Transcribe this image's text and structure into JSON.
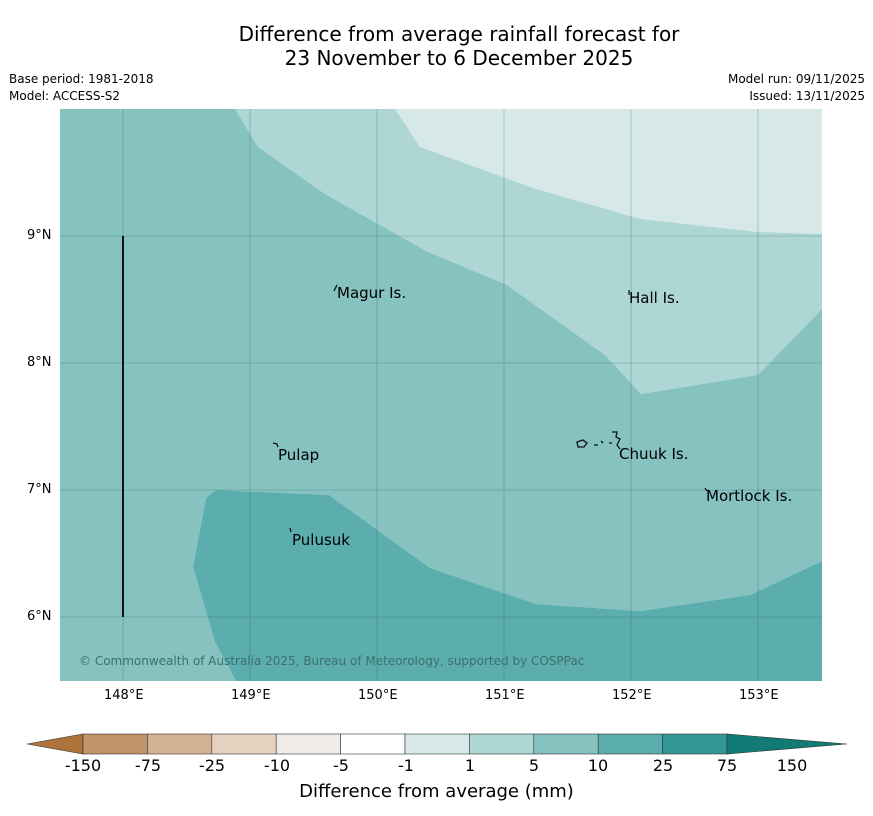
{
  "title": {
    "line1": "Difference from average rainfall forecast for",
    "line2": "23 November to 6 December 2025"
  },
  "meta": {
    "base_period": "Base period: 1981-2018",
    "model": "Model: ACCESS-S2",
    "model_run": "Model run: 09/11/2025",
    "issued": "Issued: 13/11/2025"
  },
  "map": {
    "x_ticks": [
      "148°E",
      "149°E",
      "150°E",
      "151°E",
      "152°E",
      "153°E"
    ],
    "y_ticks": [
      "9°N",
      "8°N",
      "7°N",
      "6°N"
    ],
    "places": [
      {
        "name": "Magur Is.",
        "lon": 149.7,
        "lat": 8.57
      },
      {
        "name": "Hall Is.",
        "lon": 151.98,
        "lat": 8.53
      },
      {
        "name": "Pulap",
        "lon": 149.22,
        "lat": 7.3
      },
      {
        "name": "Chuuk Is.",
        "lon": 151.9,
        "lat": 7.3
      },
      {
        "name": "Mortlock Is.",
        "lon": 152.58,
        "lat": 6.97
      },
      {
        "name": "Pulusuk",
        "lon": 149.33,
        "lat": 6.64
      }
    ],
    "copyright": "© Commonwealth of Australia 2025, Bureau of Meteorology, supported by COSPPac"
  },
  "colorbar": {
    "colors": [
      "#ad733a",
      "#c1946a",
      "#d2b195",
      "#e4d1c0",
      "#f0ede8",
      "#ffffff",
      "#d6e9e8",
      "#add6d5",
      "#85c2c0",
      "#5baead",
      "#339895",
      "#117a75"
    ],
    "labels": [
      "-150",
      "-75",
      "-25",
      "-10",
      "-5",
      "-1",
      "1",
      "5",
      "10",
      "25",
      "75",
      "150"
    ],
    "title": "Difference from average (mm)"
  }
}
